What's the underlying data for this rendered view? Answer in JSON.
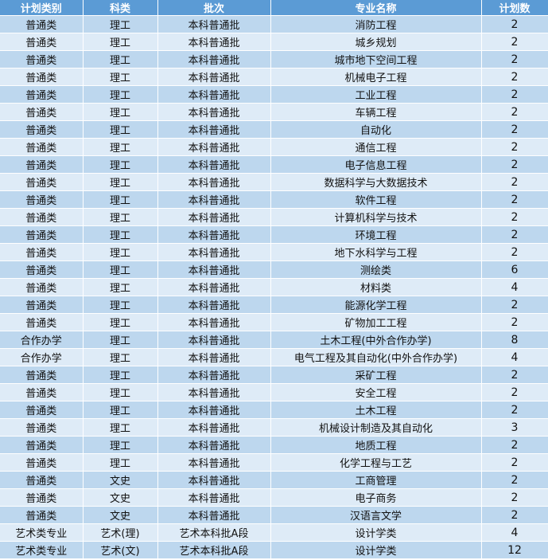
{
  "colors": {
    "header": "#5b9bd5",
    "row_odd": "#bdd7ee",
    "row_even": "#deebf7"
  },
  "headers": [
    "计划类别",
    "科类",
    "批次",
    "专业名称",
    "计划数"
  ],
  "rows": [
    [
      "普通类",
      "理工",
      "本科普通批",
      "消防工程",
      "2"
    ],
    [
      "普通类",
      "理工",
      "本科普通批",
      "城乡规划",
      "2"
    ],
    [
      "普通类",
      "理工",
      "本科普通批",
      "城市地下空间工程",
      "2"
    ],
    [
      "普通类",
      "理工",
      "本科普通批",
      "机械电子工程",
      "2"
    ],
    [
      "普通类",
      "理工",
      "本科普通批",
      "工业工程",
      "2"
    ],
    [
      "普通类",
      "理工",
      "本科普通批",
      "车辆工程",
      "2"
    ],
    [
      "普通类",
      "理工",
      "本科普通批",
      "自动化",
      "2"
    ],
    [
      "普通类",
      "理工",
      "本科普通批",
      "通信工程",
      "2"
    ],
    [
      "普通类",
      "理工",
      "本科普通批",
      "电子信息工程",
      "2"
    ],
    [
      "普通类",
      "理工",
      "本科普通批",
      "数据科学与大数据技术",
      "2"
    ],
    [
      "普通类",
      "理工",
      "本科普通批",
      "软件工程",
      "2"
    ],
    [
      "普通类",
      "理工",
      "本科普通批",
      "计算机科学与技术",
      "2"
    ],
    [
      "普通类",
      "理工",
      "本科普通批",
      "环境工程",
      "2"
    ],
    [
      "普通类",
      "理工",
      "本科普通批",
      "地下水科学与工程",
      "2"
    ],
    [
      "普通类",
      "理工",
      "本科普通批",
      "测绘类",
      "6"
    ],
    [
      "普通类",
      "理工",
      "本科普通批",
      "材料类",
      "4"
    ],
    [
      "普通类",
      "理工",
      "本科普通批",
      "能源化学工程",
      "2"
    ],
    [
      "普通类",
      "理工",
      "本科普通批",
      "矿物加工工程",
      "2"
    ],
    [
      "合作办学",
      "理工",
      "本科普通批",
      "土木工程(中外合作办学)",
      "8"
    ],
    [
      "合作办学",
      "理工",
      "本科普通批",
      "电气工程及其自动化(中外合作办学)",
      "4"
    ],
    [
      "普通类",
      "理工",
      "本科普通批",
      "采矿工程",
      "2"
    ],
    [
      "普通类",
      "理工",
      "本科普通批",
      "安全工程",
      "2"
    ],
    [
      "普通类",
      "理工",
      "本科普通批",
      "土木工程",
      "2"
    ],
    [
      "普通类",
      "理工",
      "本科普通批",
      "机械设计制造及其自动化",
      "3"
    ],
    [
      "普通类",
      "理工",
      "本科普通批",
      "地质工程",
      "2"
    ],
    [
      "普通类",
      "理工",
      "本科普通批",
      "化学工程与工艺",
      "2"
    ],
    [
      "普通类",
      "文史",
      "本科普通批",
      "工商管理",
      "2"
    ],
    [
      "普通类",
      "文史",
      "本科普通批",
      "电子商务",
      "2"
    ],
    [
      "普通类",
      "文史",
      "本科普通批",
      "汉语言文学",
      "2"
    ],
    [
      "艺术类专业",
      "艺术(理)",
      "艺术本科批A段",
      "设计学类",
      "4"
    ],
    [
      "艺术类专业",
      "艺术(文)",
      "艺术本科批A段",
      "设计学类",
      "12"
    ]
  ]
}
